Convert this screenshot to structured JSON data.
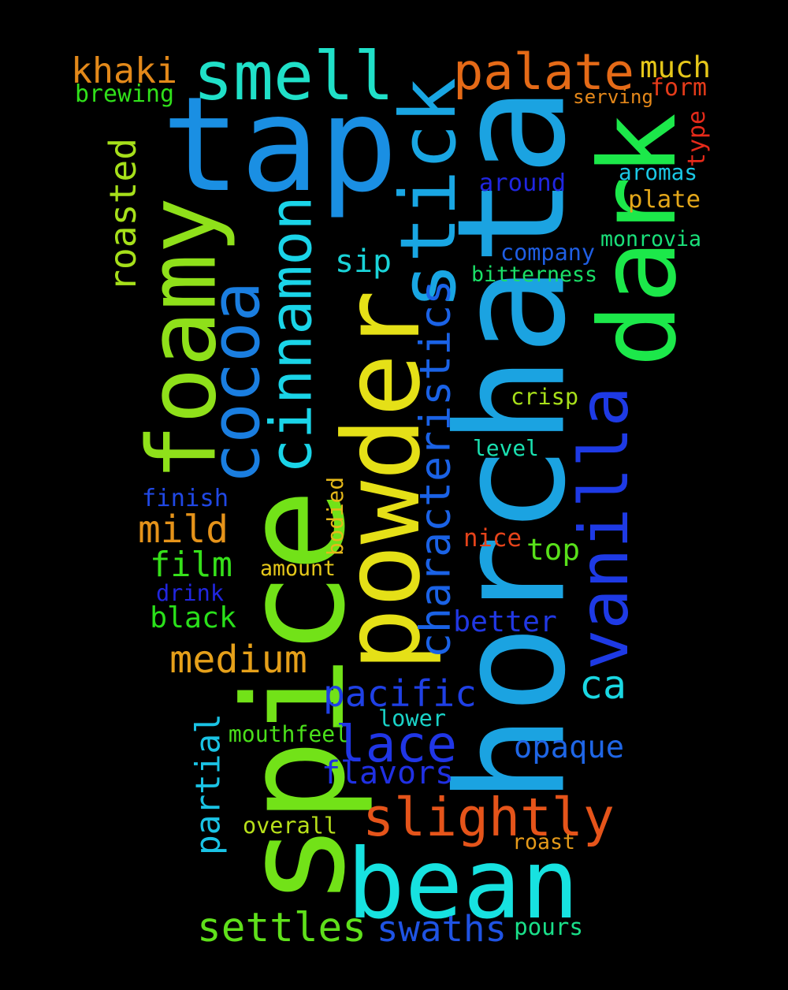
{
  "background": "#000000",
  "words": [
    {
      "text": "horchata",
      "color": "#1ba3e1"
    },
    {
      "text": "spice",
      "color": "#72e218"
    },
    {
      "text": "tap",
      "color": "#1a8fe3"
    },
    {
      "text": "powder",
      "color": "#e5e017"
    },
    {
      "text": "bean",
      "color": "#17e2e0"
    },
    {
      "text": "dark",
      "color": "#1ce84a"
    },
    {
      "text": "foamy",
      "color": "#8fe01a"
    },
    {
      "text": "smell",
      "color": "#20e0c8"
    },
    {
      "text": "palate",
      "color": "#e56a17"
    },
    {
      "text": "stick",
      "color": "#19a6e3"
    },
    {
      "text": "vanilla",
      "color": "#1e3ae5"
    },
    {
      "text": "cocoa",
      "color": "#1a7ee0"
    },
    {
      "text": "cinnamon",
      "color": "#1ad4e8"
    },
    {
      "text": "characteristics",
      "color": "#1a62e6"
    },
    {
      "text": "slightly",
      "color": "#e5541a"
    },
    {
      "text": "lace",
      "color": "#2036e6"
    },
    {
      "text": "settles",
      "color": "#5fe01b"
    },
    {
      "text": "swaths",
      "color": "#1f53e3"
    },
    {
      "text": "pacific",
      "color": "#1f40e5"
    },
    {
      "text": "khaki",
      "color": "#e3891a"
    },
    {
      "text": "roasted",
      "color": "#a6e01a"
    },
    {
      "text": "medium",
      "color": "#e5a01a"
    },
    {
      "text": "ca",
      "color": "#1ad8e3"
    },
    {
      "text": "mild",
      "color": "#e5931a"
    },
    {
      "text": "film",
      "color": "#36e01a"
    },
    {
      "text": "black",
      "color": "#2ae01a"
    },
    {
      "text": "flavors",
      "color": "#2030e3"
    },
    {
      "text": "opaque",
      "color": "#1f66e6"
    },
    {
      "text": "partial",
      "color": "#1ac3e5"
    },
    {
      "text": "much",
      "color": "#e5c71a"
    },
    {
      "text": "sip",
      "color": "#1ad3d8"
    },
    {
      "text": "top",
      "color": "#58e01a"
    },
    {
      "text": "better",
      "color": "#2138e3"
    },
    {
      "text": "finish",
      "color": "#2048e5"
    },
    {
      "text": "drink",
      "color": "#2126e0"
    },
    {
      "text": "brewing",
      "color": "#30e01a"
    },
    {
      "text": "form",
      "color": "#e53b1a"
    },
    {
      "text": "serving",
      "color": "#e5881a"
    },
    {
      "text": "type",
      "color": "#e52a1a"
    },
    {
      "text": "aromas",
      "color": "#1ac8e5"
    },
    {
      "text": "around",
      "color": "#2026e0"
    },
    {
      "text": "plate",
      "color": "#e5a81a"
    },
    {
      "text": "monrovia",
      "color": "#1ae07a"
    },
    {
      "text": "company",
      "color": "#1f5ee3"
    },
    {
      "text": "bitterness",
      "color": "#1ae068"
    },
    {
      "text": "crisp",
      "color": "#a8e01a"
    },
    {
      "text": "level",
      "color": "#1ae0b0"
    },
    {
      "text": "bodied",
      "color": "#e5b81a"
    },
    {
      "text": "nice",
      "color": "#e5431a"
    },
    {
      "text": "amount",
      "color": "#e5c81a"
    },
    {
      "text": "mouthfeel",
      "color": "#4ae01a"
    },
    {
      "text": "lower",
      "color": "#1ad3c8"
    },
    {
      "text": "overall",
      "color": "#b8e01a"
    },
    {
      "text": "roast",
      "color": "#e59a1a"
    },
    {
      "text": "pours",
      "color": "#1ae08a"
    }
  ]
}
